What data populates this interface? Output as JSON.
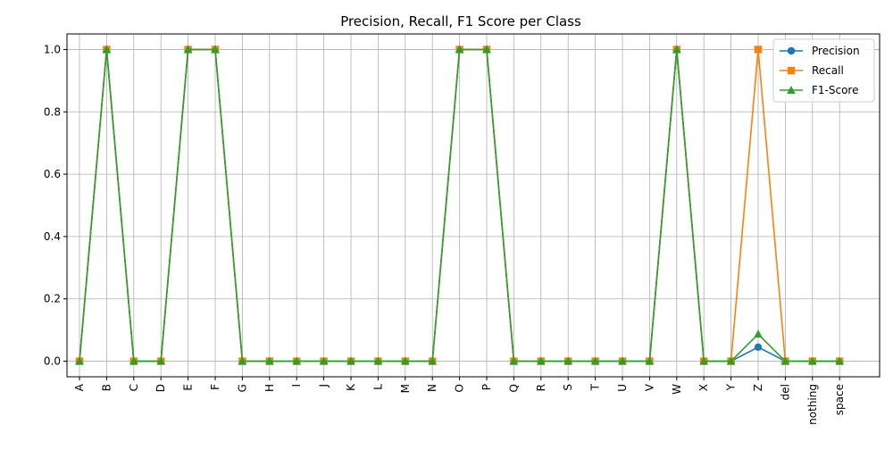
{
  "chart_data": {
    "type": "line",
    "title": "Precision, Recall, F1 Score per Class",
    "xlabel": "",
    "ylabel": "",
    "ylim": [
      -0.05,
      1.05
    ],
    "yticks": [
      0.0,
      0.2,
      0.4,
      0.6,
      0.8,
      1.0
    ],
    "ytick_labels": [
      "0.0",
      "0.2",
      "0.4",
      "0.6",
      "0.8",
      "1.0"
    ],
    "grid": true,
    "legend_position": "top-right",
    "categories": [
      "A",
      "B",
      "C",
      "D",
      "E",
      "F",
      "G",
      "H",
      "I",
      "J",
      "K",
      "L",
      "M",
      "N",
      "O",
      "P",
      "Q",
      "R",
      "S",
      "T",
      "U",
      "V",
      "W",
      "X",
      "Y",
      "Z",
      "del",
      "nothing",
      "space"
    ],
    "series": [
      {
        "name": "Precision",
        "color": "#1f77b4",
        "marker": "circle",
        "values": [
          0,
          1,
          0,
          0,
          1,
          1,
          0,
          0,
          0,
          0,
          0,
          0,
          0,
          0,
          1,
          1,
          0,
          0,
          0,
          0,
          0,
          0,
          1,
          0,
          0,
          0.045,
          0,
          0,
          0
        ]
      },
      {
        "name": "Recall",
        "color": "#ff7f0e",
        "marker": "square",
        "values": [
          0,
          1,
          0,
          0,
          1,
          1,
          0,
          0,
          0,
          0,
          0,
          0,
          0,
          0,
          1,
          1,
          0,
          0,
          0,
          0,
          0,
          0,
          1,
          0,
          0,
          1.0,
          0,
          0,
          0
        ]
      },
      {
        "name": "F1-Score",
        "color": "#2ca02c",
        "marker": "triangle",
        "values": [
          0,
          1,
          0,
          0,
          1,
          1,
          0,
          0,
          0,
          0,
          0,
          0,
          0,
          0,
          1,
          1,
          0,
          0,
          0,
          0,
          0,
          0,
          1,
          0,
          0,
          0.087,
          0,
          0,
          0
        ]
      }
    ]
  }
}
